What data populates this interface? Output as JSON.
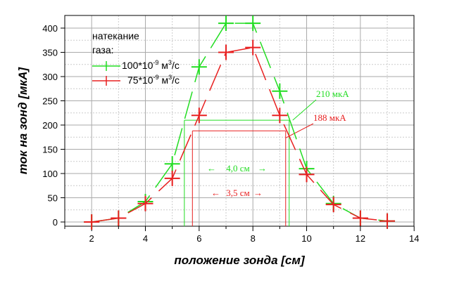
{
  "chart_data": {
    "type": "line",
    "title": "",
    "xlabel": "положение зонда [см]",
    "ylabel": "ток на зонд [мкА]",
    "xlim": [
      1,
      14
    ],
    "ylim": [
      -10,
      425
    ],
    "xticks": [
      2,
      4,
      6,
      8,
      10,
      12,
      14
    ],
    "yticks": [
      0,
      50,
      100,
      150,
      200,
      250,
      300,
      350,
      400
    ],
    "grid": true,
    "legend": {
      "title_line1": "натекание",
      "title_line2": "газа:",
      "placement": "top-left"
    },
    "series": [
      {
        "name": "100*10^-9 м^3/с",
        "label_main": "100*10",
        "label_exp": "-9",
        "label_unit": " м",
        "label_unit_exp": "3",
        "label_tail": "/с",
        "color": "#22dd22",
        "x": [
          2,
          3,
          4,
          5,
          6,
          7,
          8,
          9,
          10,
          11,
          12,
          13
        ],
        "y": [
          0,
          8,
          42,
          120,
          320,
          410,
          410,
          270,
          110,
          38,
          8,
          2
        ]
      },
      {
        "name": "75*10^-9 м^3/с",
        "label_main": "75*10",
        "label_exp": "-9",
        "label_unit": " м",
        "label_unit_exp": "3",
        "label_tail": "/с",
        "color": "#e82020",
        "x": [
          2,
          3,
          4,
          5,
          6,
          7,
          8,
          9,
          10,
          11,
          12,
          13
        ],
        "y": [
          0,
          8,
          38,
          90,
          220,
          350,
          360,
          220,
          98,
          36,
          8,
          2
        ]
      }
    ],
    "annotations": [
      {
        "text": "210 мкА",
        "level": 210,
        "x_from": 5.45,
        "x_to": 9.35,
        "color": "#22dd22"
      },
      {
        "text": "188 мкА",
        "level": 188,
        "x_from": 5.75,
        "x_to": 9.22,
        "color": "#e82020"
      },
      {
        "text": "4,0 см",
        "color": "#22dd22"
      },
      {
        "text": "3,5 см",
        "color": "#e82020"
      }
    ]
  }
}
